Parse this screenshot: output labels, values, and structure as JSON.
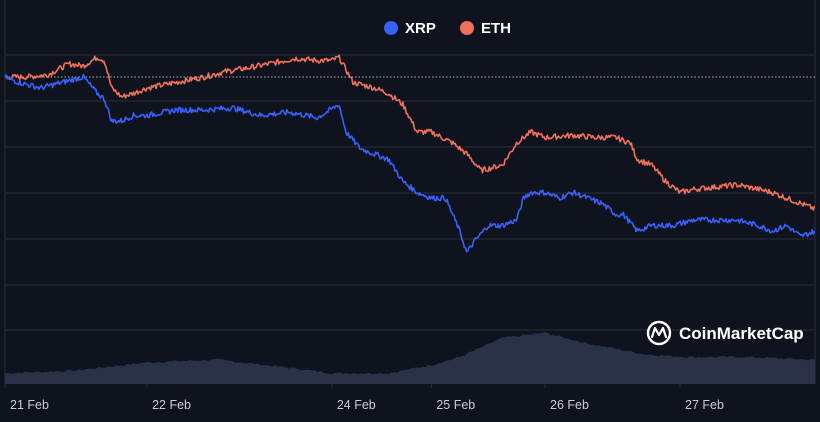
{
  "colors": {
    "background": "#0f131d",
    "grid": "#2a2f3c",
    "xrp": "#3861fb",
    "eth": "#f0715b",
    "volume": "#2d3650",
    "baseline": "#aab0bd"
  },
  "watermark": {
    "text": "CoinMarketCap",
    "icon": "coinmarketcap-logo-icon"
  },
  "chart_data": {
    "type": "line",
    "title": "",
    "xlabel": "",
    "ylabel": "",
    "unit": "percent change from start",
    "x_ticks": [
      "21 Feb",
      "22 Feb",
      "24 Feb",
      "25 Feb",
      "26 Feb",
      "27 Feb"
    ],
    "x_tick_days": [
      0,
      1.0,
      2.3,
      3.0,
      3.8,
      4.75
    ],
    "x_range": [
      0,
      5.7
    ],
    "ylim": [
      -23,
      2
    ],
    "grid": true,
    "legend": "top-center",
    "baseline": 0,
    "series": [
      {
        "name": "XRP",
        "color": "#3861fb",
        "points": [
          [
            0,
            0
          ],
          [
            0.1,
            -0.5
          ],
          [
            0.25,
            -1
          ],
          [
            0.4,
            -0.5
          ],
          [
            0.55,
            0
          ],
          [
            0.65,
            -1.5
          ],
          [
            0.7,
            -2
          ],
          [
            0.75,
            -4
          ],
          [
            0.82,
            -4
          ],
          [
            0.9,
            -3.5
          ],
          [
            1.0,
            -3.5
          ],
          [
            1.2,
            -3
          ],
          [
            1.4,
            -3
          ],
          [
            1.6,
            -2.8
          ],
          [
            1.8,
            -3.5
          ],
          [
            2.0,
            -3.2
          ],
          [
            2.2,
            -3.7
          ],
          [
            2.35,
            -2.5
          ],
          [
            2.4,
            -5
          ],
          [
            2.5,
            -6.5
          ],
          [
            2.6,
            -7
          ],
          [
            2.7,
            -7.5
          ],
          [
            2.8,
            -9.5
          ],
          [
            2.9,
            -10.5
          ],
          [
            3.0,
            -11
          ],
          [
            3.1,
            -11
          ],
          [
            3.2,
            -14
          ],
          [
            3.25,
            -16
          ],
          [
            3.3,
            -15
          ],
          [
            3.4,
            -13.5
          ],
          [
            3.5,
            -13.5
          ],
          [
            3.6,
            -13
          ],
          [
            3.65,
            -11
          ],
          [
            3.7,
            -10.5
          ],
          [
            3.8,
            -10.5
          ],
          [
            3.9,
            -11
          ],
          [
            4.0,
            -10.5
          ],
          [
            4.1,
            -11
          ],
          [
            4.2,
            -11.5
          ],
          [
            4.3,
            -12.5
          ],
          [
            4.35,
            -12.5
          ],
          [
            4.45,
            -14
          ],
          [
            4.55,
            -13.5
          ],
          [
            4.7,
            -13.5
          ],
          [
            4.85,
            -13
          ],
          [
            5.0,
            -13
          ],
          [
            5.15,
            -13
          ],
          [
            5.3,
            -13.5
          ],
          [
            5.4,
            -14
          ],
          [
            5.5,
            -13.5
          ],
          [
            5.6,
            -14.5
          ],
          [
            5.7,
            -14
          ]
        ]
      },
      {
        "name": "ETH",
        "color": "#f0715b",
        "points": [
          [
            0,
            0
          ],
          [
            0.15,
            0
          ],
          [
            0.3,
            0.2
          ],
          [
            0.45,
            1.2
          ],
          [
            0.55,
            1
          ],
          [
            0.65,
            1.8
          ],
          [
            0.7,
            1.5
          ],
          [
            0.75,
            -1
          ],
          [
            0.82,
            -1.8
          ],
          [
            0.9,
            -1.5
          ],
          [
            1.0,
            -1
          ],
          [
            1.2,
            -0.5
          ],
          [
            1.4,
            0
          ],
          [
            1.55,
            0.5
          ],
          [
            1.7,
            0.8
          ],
          [
            1.9,
            1.3
          ],
          [
            2.05,
            1.7
          ],
          [
            2.2,
            1.5
          ],
          [
            2.3,
            1.5
          ],
          [
            2.35,
            1.8
          ],
          [
            2.45,
            -0.5
          ],
          [
            2.6,
            -1
          ],
          [
            2.7,
            -1.5
          ],
          [
            2.8,
            -2.5
          ],
          [
            2.9,
            -5
          ],
          [
            3.0,
            -5
          ],
          [
            3.15,
            -6
          ],
          [
            3.25,
            -7
          ],
          [
            3.35,
            -8.5
          ],
          [
            3.5,
            -8
          ],
          [
            3.6,
            -6
          ],
          [
            3.7,
            -5
          ],
          [
            3.8,
            -5.5
          ],
          [
            4.0,
            -5.3
          ],
          [
            4.15,
            -5.5
          ],
          [
            4.3,
            -5.5
          ],
          [
            4.4,
            -6
          ],
          [
            4.45,
            -7.5
          ],
          [
            4.55,
            -8
          ],
          [
            4.65,
            -9.5
          ],
          [
            4.75,
            -10.5
          ],
          [
            4.85,
            -10.2
          ],
          [
            5.0,
            -10
          ],
          [
            5.15,
            -9.8
          ],
          [
            5.3,
            -10.2
          ],
          [
            5.4,
            -10.5
          ],
          [
            5.5,
            -11
          ],
          [
            5.6,
            -11.5
          ],
          [
            5.7,
            -12
          ]
        ]
      }
    ],
    "volume": {
      "name": "Volume",
      "color": "#2d3650",
      "points": [
        [
          0,
          0.2
        ],
        [
          0.5,
          0.25
        ],
        [
          1.0,
          0.4
        ],
        [
          1.5,
          0.45
        ],
        [
          2.0,
          0.3
        ],
        [
          2.3,
          0.2
        ],
        [
          2.7,
          0.2
        ],
        [
          3.0,
          0.35
        ],
        [
          3.2,
          0.5
        ],
        [
          3.5,
          0.85
        ],
        [
          3.8,
          0.95
        ],
        [
          4.1,
          0.75
        ],
        [
          4.5,
          0.55
        ],
        [
          4.8,
          0.5
        ],
        [
          5.2,
          0.5
        ],
        [
          5.7,
          0.45
        ]
      ]
    }
  }
}
